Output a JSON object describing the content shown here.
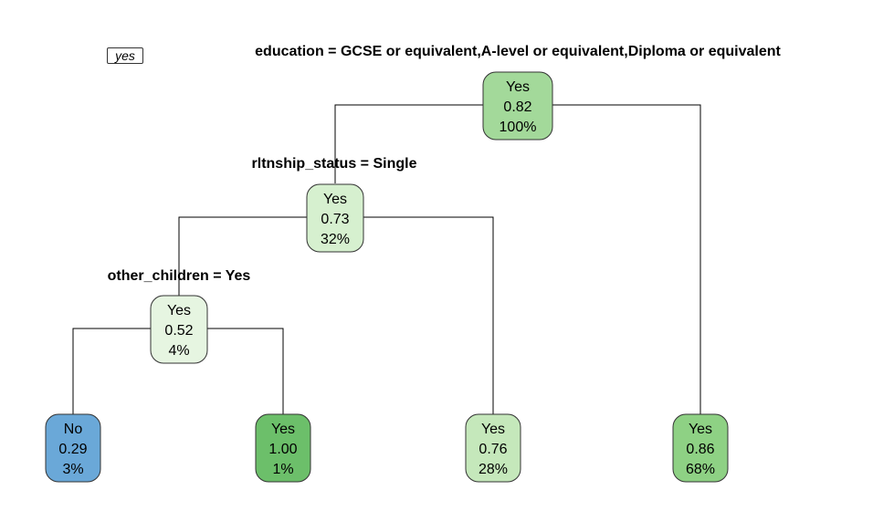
{
  "legend": {
    "label": "yes"
  },
  "splits": [
    {
      "id": "split-education",
      "text": "education = GCSE or equivalent,A-level or equivalent,Diploma or equivalent"
    },
    {
      "id": "split-rltnship",
      "text": "rltnship_status = Single"
    },
    {
      "id": "split-other-children",
      "text": "other_children = Yes"
    }
  ],
  "nodes": [
    {
      "id": "node-root",
      "class": "Yes",
      "prob": "0.82",
      "pct": "100%",
      "fill": "#a3d99a"
    },
    {
      "id": "node-single",
      "class": "Yes",
      "prob": "0.73",
      "pct": "32%",
      "fill": "#d6f0cf"
    },
    {
      "id": "node-other-children",
      "class": "Yes",
      "prob": "0.52",
      "pct": "4%",
      "fill": "#e6f5e1"
    },
    {
      "id": "leaf-no",
      "class": "No",
      "prob": "0.29",
      "pct": "3%",
      "fill": "#6aa8d8"
    },
    {
      "id": "leaf-yes-100",
      "class": "Yes",
      "prob": "1.00",
      "pct": "1%",
      "fill": "#6cbf6a"
    },
    {
      "id": "leaf-yes-076",
      "class": "Yes",
      "prob": "0.76",
      "pct": "28%",
      "fill": "#c5e8bb"
    },
    {
      "id": "leaf-yes-086",
      "class": "Yes",
      "prob": "0.86",
      "pct": "68%",
      "fill": "#8ed184"
    }
  ]
}
